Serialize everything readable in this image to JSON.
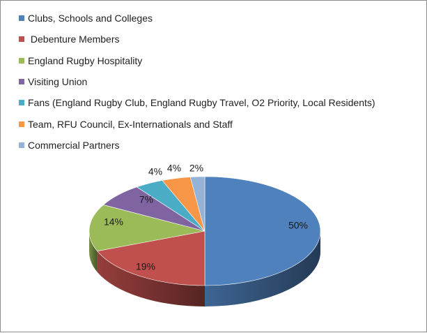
{
  "chart_data": {
    "type": "pie",
    "title": "",
    "legend_position": "top",
    "three_d": true,
    "series": [
      {
        "label": "Clubs, Schools and Colleges",
        "value": 50,
        "display": "50%",
        "color": "#4F81BD"
      },
      {
        "label": " Debenture Members",
        "value": 19,
        "display": "19%",
        "color": "#C0504D"
      },
      {
        "label": "England Rugby Hospitality",
        "value": 14,
        "display": "14%",
        "color": "#9BBB59"
      },
      {
        "label": "Visiting Union",
        "value": 7,
        "display": "7%",
        "color": "#8064A2"
      },
      {
        "label": "Fans (England Rugby Club, England Rugby Travel, O2 Priority, Local Residents)",
        "value": 4,
        "display": "4%",
        "color": "#4BACC6"
      },
      {
        "label": "Team, RFU Council, Ex-Internationals and Staff",
        "value": 4,
        "display": "4%",
        "color": "#F79646"
      },
      {
        "label": "Commercial Partners",
        "value": 2,
        "display": "2%",
        "color": "#95B3D7"
      }
    ]
  }
}
